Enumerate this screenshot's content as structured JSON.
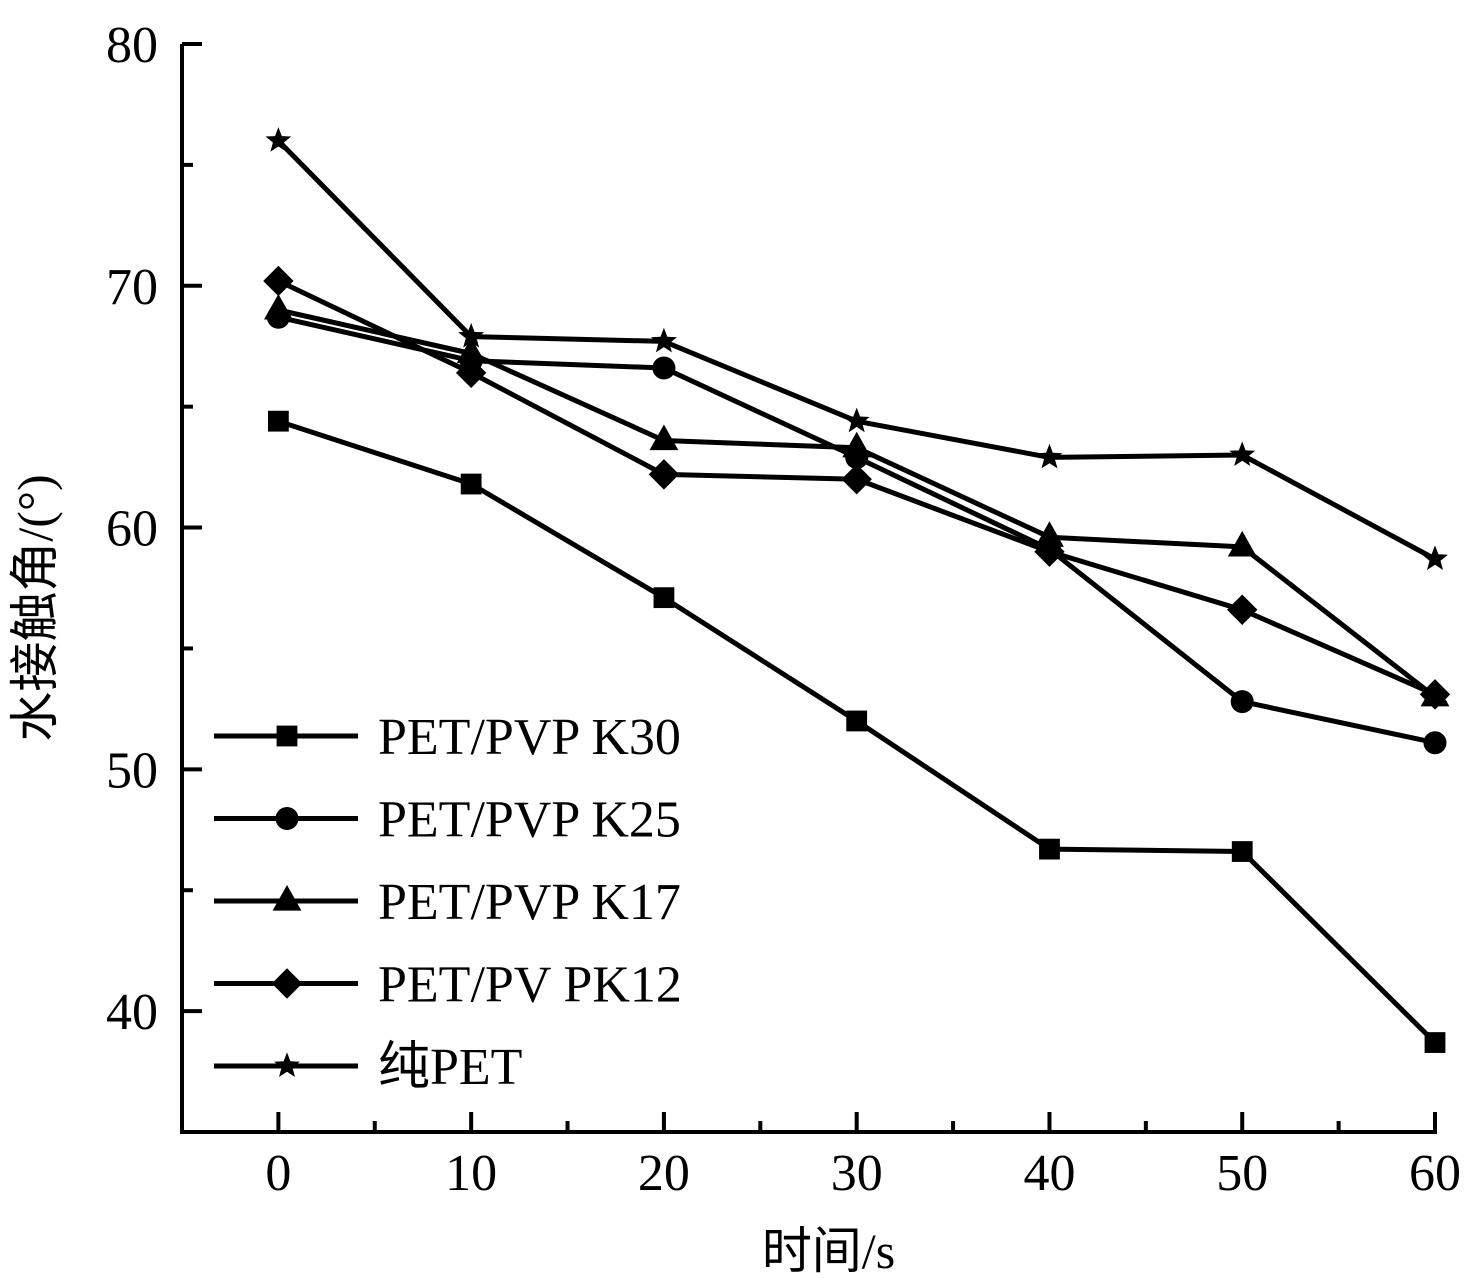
{
  "chart_data": {
    "type": "line",
    "title": "",
    "xlabel": "时间/s",
    "ylabel": "水接触角/(°)",
    "xlim": [
      -5,
      60
    ],
    "ylim": [
      35,
      80
    ],
    "xticks": [
      0,
      10,
      20,
      30,
      40,
      50,
      60
    ],
    "xtick_labels": [
      "0",
      "10",
      "20",
      "30",
      "40",
      "50",
      "60"
    ],
    "x_minor_ticks": [
      5,
      15,
      25,
      35,
      45,
      55
    ],
    "yticks": [
      40,
      50,
      60,
      70,
      80
    ],
    "ytick_labels": [
      "40",
      "50",
      "60",
      "70",
      "80"
    ],
    "y_minor_ticks": [
      45,
      55,
      65,
      75
    ],
    "grid": false,
    "legend_position": "bottom-left",
    "x": [
      0,
      10,
      20,
      30,
      40,
      50,
      60
    ],
    "series": [
      {
        "name": "PET/PVP K30",
        "marker": "square",
        "color": "#000000",
        "values": [
          64.4,
          61.8,
          57.1,
          52.0,
          46.7,
          46.6,
          38.7
        ]
      },
      {
        "name": "PET/PVP K25",
        "marker": "circle",
        "color": "#000000",
        "values": [
          68.7,
          66.9,
          66.6,
          62.9,
          59.1,
          52.8,
          51.1
        ]
      },
      {
        "name": "PET/PVP K17",
        "marker": "triangle",
        "color": "#000000",
        "values": [
          69.0,
          67.2,
          63.6,
          63.3,
          59.6,
          59.2,
          53.0
        ]
      },
      {
        "name": "PET/PV PK12",
        "marker": "diamond",
        "color": "#000000",
        "values": [
          70.2,
          66.4,
          62.2,
          62.0,
          59.0,
          56.6,
          53.1
        ]
      },
      {
        "name": "纯PET",
        "marker": "star",
        "color": "#000000",
        "values": [
          76.0,
          67.9,
          67.7,
          64.4,
          62.9,
          63.0,
          58.7
        ]
      }
    ]
  }
}
